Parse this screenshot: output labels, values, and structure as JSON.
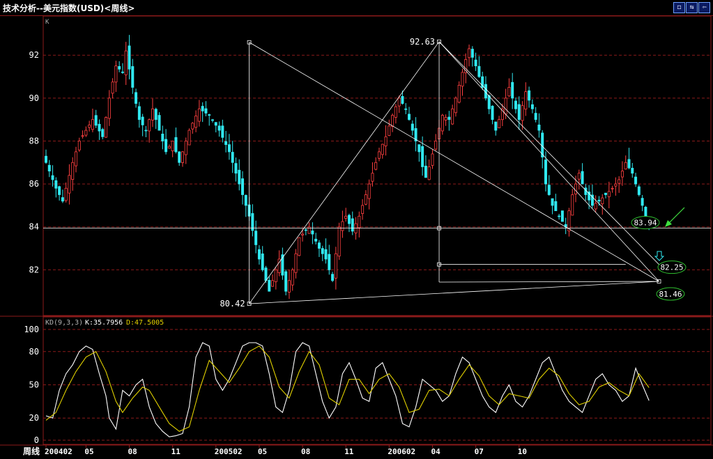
{
  "window": {
    "title": "技术分析--美元指数(USD)<周线>",
    "buttons": [
      {
        "name": "restore-icon",
        "glyph": "◻"
      },
      {
        "name": "swap-icon",
        "glyph": "⇆"
      },
      {
        "name": "prev-icon",
        "glyph": "⇦"
      }
    ]
  },
  "colors": {
    "up": "#ff4040",
    "down": "#30e8f0",
    "grid": "#8b1a1a",
    "k_line": "#ffffff",
    "d_line": "#e0d000",
    "annotation": "#ffffff",
    "badge_border": "#30c030",
    "arrow_green": "#40e040",
    "arrow_cyan": "#30e8f0"
  },
  "chart_data": [
    {
      "type": "candlestick",
      "panel_label": "K",
      "ylim": [
        80,
        93.5
      ],
      "yticks": [
        82,
        84,
        86,
        88,
        90,
        92
      ],
      "period_count": 148,
      "current_price_line": 83.94,
      "price_path": [
        [
          0,
          87.0
        ],
        [
          3,
          85.8
        ],
        [
          5,
          85.2
        ],
        [
          8,
          87.0
        ],
        [
          10,
          88.0
        ],
        [
          14,
          89.0
        ],
        [
          17,
          88.2
        ],
        [
          19,
          90.0
        ],
        [
          21,
          91.5
        ],
        [
          23,
          91.2
        ],
        [
          24,
          92.2
        ],
        [
          26,
          90.5
        ],
        [
          28,
          89.0
        ],
        [
          30,
          88.5
        ],
        [
          32,
          89.5
        ],
        [
          34,
          88.5
        ],
        [
          36,
          87.5
        ],
        [
          38,
          88.0
        ],
        [
          40,
          87.0
        ],
        [
          43,
          88.5
        ],
        [
          46,
          89.5
        ],
        [
          49,
          89.2
        ],
        [
          52,
          88.5
        ],
        [
          55,
          87.5
        ],
        [
          58,
          86.0
        ],
        [
          61,
          84.5
        ],
        [
          64,
          82.5
        ],
        [
          67,
          81.0
        ],
        [
          70,
          82.5
        ],
        [
          72,
          81.0
        ],
        [
          74,
          82.0
        ],
        [
          76,
          83.5
        ],
        [
          79,
          84.0
        ],
        [
          82,
          83.0
        ],
        [
          84,
          82.5
        ],
        [
          86,
          81.5
        ],
        [
          88,
          84.0
        ],
        [
          90,
          84.5
        ],
        [
          92,
          83.8
        ],
        [
          94,
          84.5
        ],
        [
          96,
          85.5
        ],
        [
          98,
          86.5
        ],
        [
          100,
          87.5
        ],
        [
          102,
          88.2
        ],
        [
          104,
          89.2
        ],
        [
          106,
          90.0
        ],
        [
          108,
          89.5
        ],
        [
          110,
          88.5
        ],
        [
          112,
          87.5
        ],
        [
          113,
          86.8
        ],
        [
          114,
          86.3
        ],
        [
          115,
          86.8
        ],
        [
          117,
          88.0
        ],
        [
          119,
          89.2
        ],
        [
          121,
          89.0
        ],
        [
          123,
          90.0
        ],
        [
          125,
          91.2
        ],
        [
          126,
          91.8
        ],
        [
          127,
          92.3
        ],
        [
          129,
          91.5
        ],
        [
          131,
          90.5
        ],
        [
          133,
          89.5
        ],
        [
          135,
          88.5
        ],
        [
          137,
          89.5
        ],
        [
          139,
          90.5
        ],
        [
          141,
          89.5
        ],
        [
          142,
          89.0
        ],
        [
          144,
          90.3
        ],
        [
          146,
          89.5
        ],
        [
          148,
          88.5
        ],
        [
          150,
          86.0
        ],
        [
          152,
          85.0
        ],
        [
          154,
          84.5
        ],
        [
          156,
          84.0
        ],
        [
          158,
          85.5
        ],
        [
          160,
          86.5
        ],
        [
          162,
          85.5
        ],
        [
          164,
          85.0
        ],
        [
          166,
          85.2
        ],
        [
          168,
          85.5
        ],
        [
          170,
          85.8
        ],
        [
          172,
          86.2
        ],
        [
          174,
          87.0
        ],
        [
          176,
          86.5
        ],
        [
          178,
          85.5
        ],
        [
          180,
          84.5
        ],
        [
          181,
          83.94
        ]
      ],
      "ticks_x": [
        "200402",
        "05",
        "08",
        "11",
        "200502",
        "05",
        "08",
        "11",
        "200602",
        "04",
        "07",
        "10"
      ],
      "ticks_period": [
        0,
        12,
        25,
        38,
        51,
        64,
        77,
        90,
        103,
        116,
        129,
        142
      ],
      "annotations": {
        "high_label": "92.63",
        "low_label": "80.42",
        "current_label": "83.94",
        "target_1_label": "82.25",
        "target_2_label": "81.46",
        "high": 92.63,
        "low": 80.42,
        "current": 83.94,
        "target_1": 82.25,
        "target_2": 81.46,
        "left_pivot_high": 92.6,
        "right_low": 81.46
      }
    },
    {
      "type": "line",
      "indicator_label": "KD(9,3,3)",
      "series": [
        {
          "name": "K",
          "value_label": "35.7956"
        },
        {
          "name": "D",
          "value_label": "47.5005"
        }
      ],
      "ylim": [
        0,
        105
      ],
      "yticks": [
        0,
        20,
        50,
        80,
        100
      ],
      "k_path": [
        [
          0,
          22
        ],
        [
          2,
          20
        ],
        [
          4,
          45
        ],
        [
          6,
          60
        ],
        [
          8,
          68
        ],
        [
          10,
          80
        ],
        [
          12,
          85
        ],
        [
          14,
          82
        ],
        [
          16,
          60
        ],
        [
          18,
          40
        ],
        [
          19,
          20
        ],
        [
          21,
          10
        ],
        [
          23,
          45
        ],
        [
          25,
          40
        ],
        [
          27,
          50
        ],
        [
          29,
          55
        ],
        [
          31,
          30
        ],
        [
          33,
          15
        ],
        [
          35,
          8
        ],
        [
          37,
          3
        ],
        [
          39,
          4
        ],
        [
          41,
          6
        ],
        [
          43,
          30
        ],
        [
          45,
          75
        ],
        [
          47,
          88
        ],
        [
          49,
          85
        ],
        [
          51,
          55
        ],
        [
          53,
          45
        ],
        [
          55,
          55
        ],
        [
          57,
          70
        ],
        [
          59,
          85
        ],
        [
          61,
          88
        ],
        [
          63,
          88
        ],
        [
          65,
          85
        ],
        [
          67,
          60
        ],
        [
          69,
          30
        ],
        [
          71,
          25
        ],
        [
          73,
          45
        ],
        [
          75,
          80
        ],
        [
          77,
          88
        ],
        [
          79,
          85
        ],
        [
          81,
          60
        ],
        [
          83,
          35
        ],
        [
          85,
          20
        ],
        [
          87,
          30
        ],
        [
          89,
          60
        ],
        [
          91,
          70
        ],
        [
          93,
          55
        ],
        [
          95,
          38
        ],
        [
          97,
          35
        ],
        [
          99,
          65
        ],
        [
          101,
          70
        ],
        [
          103,
          55
        ],
        [
          105,
          40
        ],
        [
          107,
          15
        ],
        [
          109,
          12
        ],
        [
          111,
          30
        ],
        [
          113,
          55
        ],
        [
          115,
          50
        ],
        [
          117,
          45
        ],
        [
          119,
          35
        ],
        [
          121,
          40
        ],
        [
          123,
          60
        ],
        [
          125,
          75
        ],
        [
          127,
          70
        ],
        [
          129,
          55
        ],
        [
          131,
          40
        ],
        [
          133,
          30
        ],
        [
          135,
          25
        ],
        [
          137,
          40
        ],
        [
          139,
          50
        ],
        [
          141,
          35
        ],
        [
          143,
          30
        ],
        [
          145,
          40
        ],
        [
          147,
          55
        ],
        [
          149,
          70
        ],
        [
          151,
          75
        ],
        [
          153,
          60
        ],
        [
          155,
          45
        ],
        [
          157,
          35
        ],
        [
          159,
          30
        ],
        [
          161,
          25
        ],
        [
          163,
          40
        ],
        [
          165,
          55
        ],
        [
          167,
          60
        ],
        [
          169,
          50
        ],
        [
          171,
          45
        ],
        [
          173,
          35
        ],
        [
          175,
          40
        ],
        [
          177,
          65
        ],
        [
          179,
          50
        ],
        [
          181,
          35.8
        ]
      ],
      "d_path": [
        [
          0,
          18
        ],
        [
          3,
          25
        ],
        [
          6,
          45
        ],
        [
          9,
          62
        ],
        [
          12,
          75
        ],
        [
          15,
          80
        ],
        [
          18,
          62
        ],
        [
          21,
          35
        ],
        [
          23,
          25
        ],
        [
          26,
          38
        ],
        [
          29,
          48
        ],
        [
          31,
          45
        ],
        [
          34,
          30
        ],
        [
          37,
          15
        ],
        [
          40,
          8
        ],
        [
          43,
          12
        ],
        [
          46,
          45
        ],
        [
          49,
          72
        ],
        [
          52,
          62
        ],
        [
          55,
          52
        ],
        [
          58,
          65
        ],
        [
          61,
          80
        ],
        [
          64,
          85
        ],
        [
          67,
          75
        ],
        [
          70,
          48
        ],
        [
          73,
          38
        ],
        [
          76,
          62
        ],
        [
          79,
          80
        ],
        [
          82,
          68
        ],
        [
          85,
          38
        ],
        [
          88,
          32
        ],
        [
          91,
          55
        ],
        [
          94,
          55
        ],
        [
          97,
          42
        ],
        [
          100,
          55
        ],
        [
          103,
          60
        ],
        [
          106,
          48
        ],
        [
          109,
          25
        ],
        [
          112,
          28
        ],
        [
          115,
          45
        ],
        [
          118,
          46
        ],
        [
          121,
          40
        ],
        [
          124,
          55
        ],
        [
          127,
          68
        ],
        [
          130,
          58
        ],
        [
          133,
          40
        ],
        [
          136,
          32
        ],
        [
          139,
          42
        ],
        [
          142,
          40
        ],
        [
          145,
          38
        ],
        [
          148,
          55
        ],
        [
          151,
          65
        ],
        [
          154,
          58
        ],
        [
          157,
          42
        ],
        [
          160,
          32
        ],
        [
          163,
          35
        ],
        [
          166,
          48
        ],
        [
          169,
          52
        ],
        [
          172,
          45
        ],
        [
          175,
          40
        ],
        [
          178,
          60
        ],
        [
          181,
          47.5
        ]
      ]
    }
  ],
  "footer": {
    "label": "周线"
  }
}
